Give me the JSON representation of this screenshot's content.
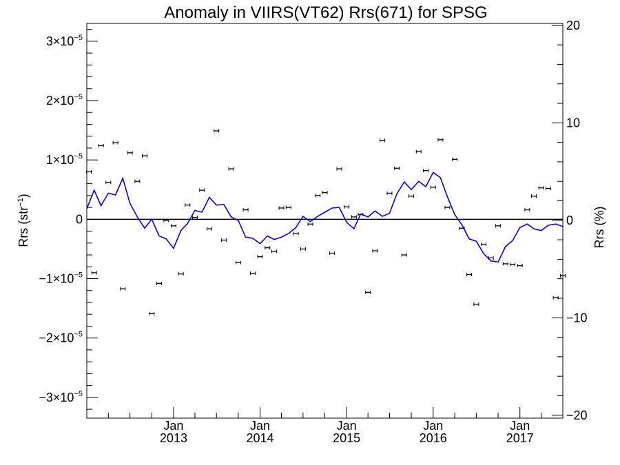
{
  "chart_data": {
    "type": "scatter",
    "title": "Anomaly in VIIRS(VT62) Rrs(671) for SPSG",
    "ylabel": "Rrs (str",
    "ylabel_sup": "−1",
    "ylabel_close": ")",
    "y2label": "Rrs (%)",
    "x_range": [
      "2012-01-01",
      "2017-07-01"
    ],
    "ylim": [
      -3.35e-05,
      3.3e-05
    ],
    "y2lim": [
      -20.3,
      20.2
    ],
    "y_ticks": [
      {
        "value": 3e-05,
        "mant": "3",
        "exp": "−5"
      },
      {
        "value": 2e-05,
        "mant": "2",
        "exp": "−5"
      },
      {
        "value": 1e-05,
        "mant": "1",
        "exp": "−5"
      },
      {
        "value": 0,
        "mant": "0",
        "exp": ""
      },
      {
        "value": -1e-05,
        "mant": "−1",
        "exp": "−5"
      },
      {
        "value": -2e-05,
        "mant": "−2",
        "exp": "−5"
      },
      {
        "value": -3e-05,
        "mant": "−3",
        "exp": "−5"
      }
    ],
    "y2_ticks": [
      20,
      10,
      0,
      -10,
      -20
    ],
    "y2_tick_labels": [
      "20",
      "10",
      "0",
      "−10",
      "−20"
    ],
    "x_ticks": [
      {
        "date": "2013-01-01",
        "month": "Jan",
        "year": "2013"
      },
      {
        "date": "2014-01-01",
        "month": "Jan",
        "year": "2014"
      },
      {
        "date": "2015-01-01",
        "month": "Jan",
        "year": "2015"
      },
      {
        "date": "2016-01-01",
        "month": "Jan",
        "year": "2016"
      },
      {
        "date": "2017-01-01",
        "month": "Jan",
        "year": "2017"
      }
    ],
    "zero_line": true,
    "series": [
      {
        "kind": "points_with_errorbars",
        "color": "#000000",
        "points": [
          [
            "2012-01-10",
            8e-06
          ],
          [
            "2012-02-01",
            -9e-06
          ],
          [
            "2012-03-01",
            1.24e-05
          ],
          [
            "2012-04-01",
            6.2e-06
          ],
          [
            "2012-05-01",
            1.29e-05
          ],
          [
            "2012-06-01",
            -1.17e-05
          ],
          [
            "2012-07-01",
            1.12e-05
          ],
          [
            "2012-08-01",
            6.4e-06
          ],
          [
            "2012-09-01",
            1.07e-05
          ],
          [
            "2012-10-01",
            -1.59e-05
          ],
          [
            "2012-11-01",
            -1.08e-05
          ],
          [
            "2012-12-01",
            -2e-07
          ],
          [
            "2013-01-01",
            -1.1e-06
          ],
          [
            "2013-02-01",
            -9.2e-06
          ],
          [
            "2013-03-01",
            2.4e-06
          ],
          [
            "2013-04-01",
            3e-07
          ],
          [
            "2013-05-01",
            4.9e-06
          ],
          [
            "2013-06-01",
            -1.6e-06
          ],
          [
            "2013-07-01",
            1.49e-05
          ],
          [
            "2013-08-01",
            -3.5e-06
          ],
          [
            "2013-09-01",
            8.5e-06
          ],
          [
            "2013-10-01",
            -7.3e-06
          ],
          [
            "2013-11-01",
            1.6e-06
          ],
          [
            "2013-12-01",
            -9.1e-06
          ],
          [
            "2014-01-01",
            -6.3e-06
          ],
          [
            "2014-02-01",
            -4.8e-06
          ],
          [
            "2014-03-01",
            -5.4e-06
          ],
          [
            "2014-04-01",
            1.9e-06
          ],
          [
            "2014-05-01",
            2e-06
          ],
          [
            "2014-06-01",
            -2.4e-06
          ],
          [
            "2014-07-01",
            -5e-06
          ],
          [
            "2014-08-01",
            -8e-07
          ],
          [
            "2014-09-01",
            4e-06
          ],
          [
            "2014-10-01",
            4.5e-06
          ],
          [
            "2014-11-01",
            -5.7e-06
          ],
          [
            "2014-12-01",
            8.5e-06
          ],
          [
            "2015-01-01",
            2.1e-06
          ],
          [
            "2015-02-01",
            4e-07
          ],
          [
            "2015-03-01",
            8e-07
          ],
          [
            "2015-04-01",
            -1.23e-05
          ],
          [
            "2015-05-01",
            -5.3e-06
          ],
          [
            "2015-06-01",
            1.33e-05
          ],
          [
            "2015-07-01",
            4.4e-06
          ],
          [
            "2015-08-01",
            8.6e-06
          ],
          [
            "2015-09-01",
            -6e-06
          ],
          [
            "2015-10-01",
            3.9e-06
          ],
          [
            "2015-11-01",
            1.14e-05
          ],
          [
            "2015-12-01",
            8.2e-06
          ],
          [
            "2016-01-01",
            5.4e-06
          ],
          [
            "2016-02-01",
            1.34e-05
          ],
          [
            "2016-03-01",
            2e-06
          ],
          [
            "2016-04-01",
            1.01e-05
          ],
          [
            "2016-05-01",
            -1.5e-06
          ],
          [
            "2016-06-01",
            -9.3e-06
          ],
          [
            "2016-07-01",
            -1.43e-05
          ],
          [
            "2016-08-01",
            -4.2e-06
          ],
          [
            "2016-09-01",
            -6.5e-06
          ],
          [
            "2016-10-01",
            -1.1e-06
          ],
          [
            "2016-11-01",
            -7.5e-06
          ],
          [
            "2016-12-01",
            -7.6e-06
          ],
          [
            "2017-01-01",
            -7.8e-06
          ],
          [
            "2017-02-01",
            1.6e-06
          ],
          [
            "2017-03-01",
            3.9e-06
          ],
          [
            "2017-04-01",
            5.3e-06
          ],
          [
            "2017-05-01",
            5.2e-06
          ],
          [
            "2017-06-01",
            -1.32e-05
          ],
          [
            "2017-07-01",
            -9.5e-06
          ]
        ]
      },
      {
        "kind": "line",
        "color": "#0000ff",
        "points": [
          [
            "2012-01-01",
            1.8e-06
          ],
          [
            "2012-02-01",
            4.9e-06
          ],
          [
            "2012-03-01",
            2.3e-06
          ],
          [
            "2012-04-01",
            4.4e-06
          ],
          [
            "2012-05-01",
            4.1e-06
          ],
          [
            "2012-06-01",
            6.9e-06
          ],
          [
            "2012-07-01",
            2.7e-06
          ],
          [
            "2012-08-01",
            4e-07
          ],
          [
            "2012-09-01",
            -1.5e-06
          ],
          [
            "2012-10-01",
            0.0
          ],
          [
            "2012-11-01",
            -2.8e-06
          ],
          [
            "2012-12-01",
            -3.3e-06
          ],
          [
            "2013-01-01",
            -4.9e-06
          ],
          [
            "2013-02-01",
            -1.9e-06
          ],
          [
            "2013-03-01",
            -7e-07
          ],
          [
            "2013-04-01",
            1.5e-06
          ],
          [
            "2013-05-01",
            1.2e-06
          ],
          [
            "2013-06-01",
            3.7e-06
          ],
          [
            "2013-07-01",
            2.4e-06
          ],
          [
            "2013-08-01",
            2.5e-06
          ],
          [
            "2013-09-01",
            4e-07
          ],
          [
            "2013-10-01",
            -2e-07
          ],
          [
            "2013-11-01",
            -3e-06
          ],
          [
            "2013-12-01",
            -3.2e-06
          ],
          [
            "2014-01-01",
            -4.1e-06
          ],
          [
            "2014-02-01",
            -2.8e-06
          ],
          [
            "2014-03-01",
            -3.4e-06
          ],
          [
            "2014-04-01",
            -3e-06
          ],
          [
            "2014-05-01",
            -2.4e-06
          ],
          [
            "2014-06-01",
            -1.4e-06
          ],
          [
            "2014-07-01",
            5e-07
          ],
          [
            "2014-08-01",
            -4e-07
          ],
          [
            "2014-09-01",
            5e-07
          ],
          [
            "2014-10-01",
            1.2e-06
          ],
          [
            "2014-11-01",
            1.9e-06
          ],
          [
            "2014-12-01",
            2e-06
          ],
          [
            "2015-01-01",
            -5e-07
          ],
          [
            "2015-02-01",
            -1.6e-06
          ],
          [
            "2015-03-01",
            9e-07
          ],
          [
            "2015-04-01",
            4e-07
          ],
          [
            "2015-05-01",
            1.4e-06
          ],
          [
            "2015-06-01",
            5e-07
          ],
          [
            "2015-07-01",
            1e-06
          ],
          [
            "2015-08-01",
            4.3e-06
          ],
          [
            "2015-09-01",
            6.3e-06
          ],
          [
            "2015-10-01",
            5e-06
          ],
          [
            "2015-11-01",
            6.4e-06
          ],
          [
            "2015-12-01",
            5.5e-06
          ],
          [
            "2016-01-01",
            7.9e-06
          ],
          [
            "2016-02-01",
            7e-06
          ],
          [
            "2016-03-01",
            3.8e-06
          ],
          [
            "2016-04-01",
            8e-07
          ],
          [
            "2016-05-01",
            -9e-07
          ],
          [
            "2016-06-01",
            -3.3e-06
          ],
          [
            "2016-07-01",
            -3.7e-06
          ],
          [
            "2016-08-01",
            -5.8e-06
          ],
          [
            "2016-09-01",
            -7e-06
          ],
          [
            "2016-10-01",
            -7.2e-06
          ],
          [
            "2016-11-01",
            -4.6e-06
          ],
          [
            "2016-12-01",
            -3.6e-06
          ],
          [
            "2017-01-01",
            -1.4e-06
          ],
          [
            "2017-02-01",
            -8e-07
          ],
          [
            "2017-03-01",
            -1.6e-06
          ],
          [
            "2017-04-01",
            -1.9e-06
          ],
          [
            "2017-05-01",
            -1e-06
          ],
          [
            "2017-06-01",
            -8e-07
          ],
          [
            "2017-07-01",
            -1.2e-06
          ]
        ]
      }
    ]
  }
}
